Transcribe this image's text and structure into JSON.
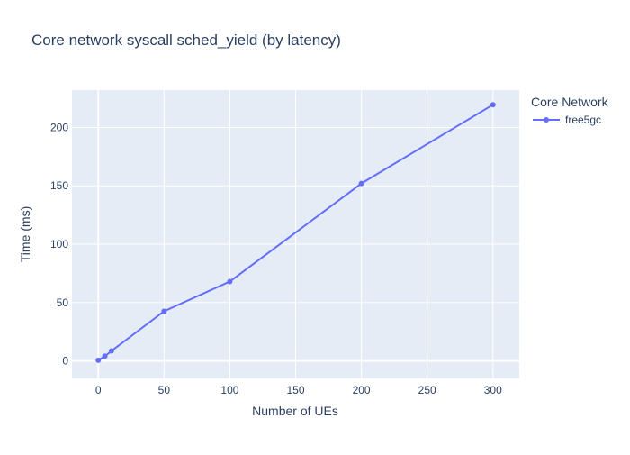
{
  "chart_data": {
    "type": "line",
    "title": "Core network syscall sched_yield (by latency)",
    "xlabel": "Number of UEs",
    "ylabel": "Time (ms)",
    "xlim": [
      -20,
      320
    ],
    "ylim": [
      -15,
      232
    ],
    "xticks": [
      0,
      50,
      100,
      150,
      200,
      250,
      300
    ],
    "yticks": [
      0,
      50,
      100,
      150,
      200
    ],
    "grid": true,
    "legend": {
      "title": "Core Network",
      "position": "top-right, outside plot area"
    },
    "series": [
      {
        "name": "free5gc",
        "x": [
          0,
          5,
          10,
          50,
          100,
          200,
          300
        ],
        "y": [
          0.5,
          4,
          8.5,
          42.5,
          68,
          152,
          219.5
        ]
      }
    ]
  },
  "colors": {
    "plot_bg": "#E5ECF6",
    "grid": "#FFFFFF",
    "text": "#2A3F5F",
    "series": [
      "#636EFA"
    ]
  }
}
